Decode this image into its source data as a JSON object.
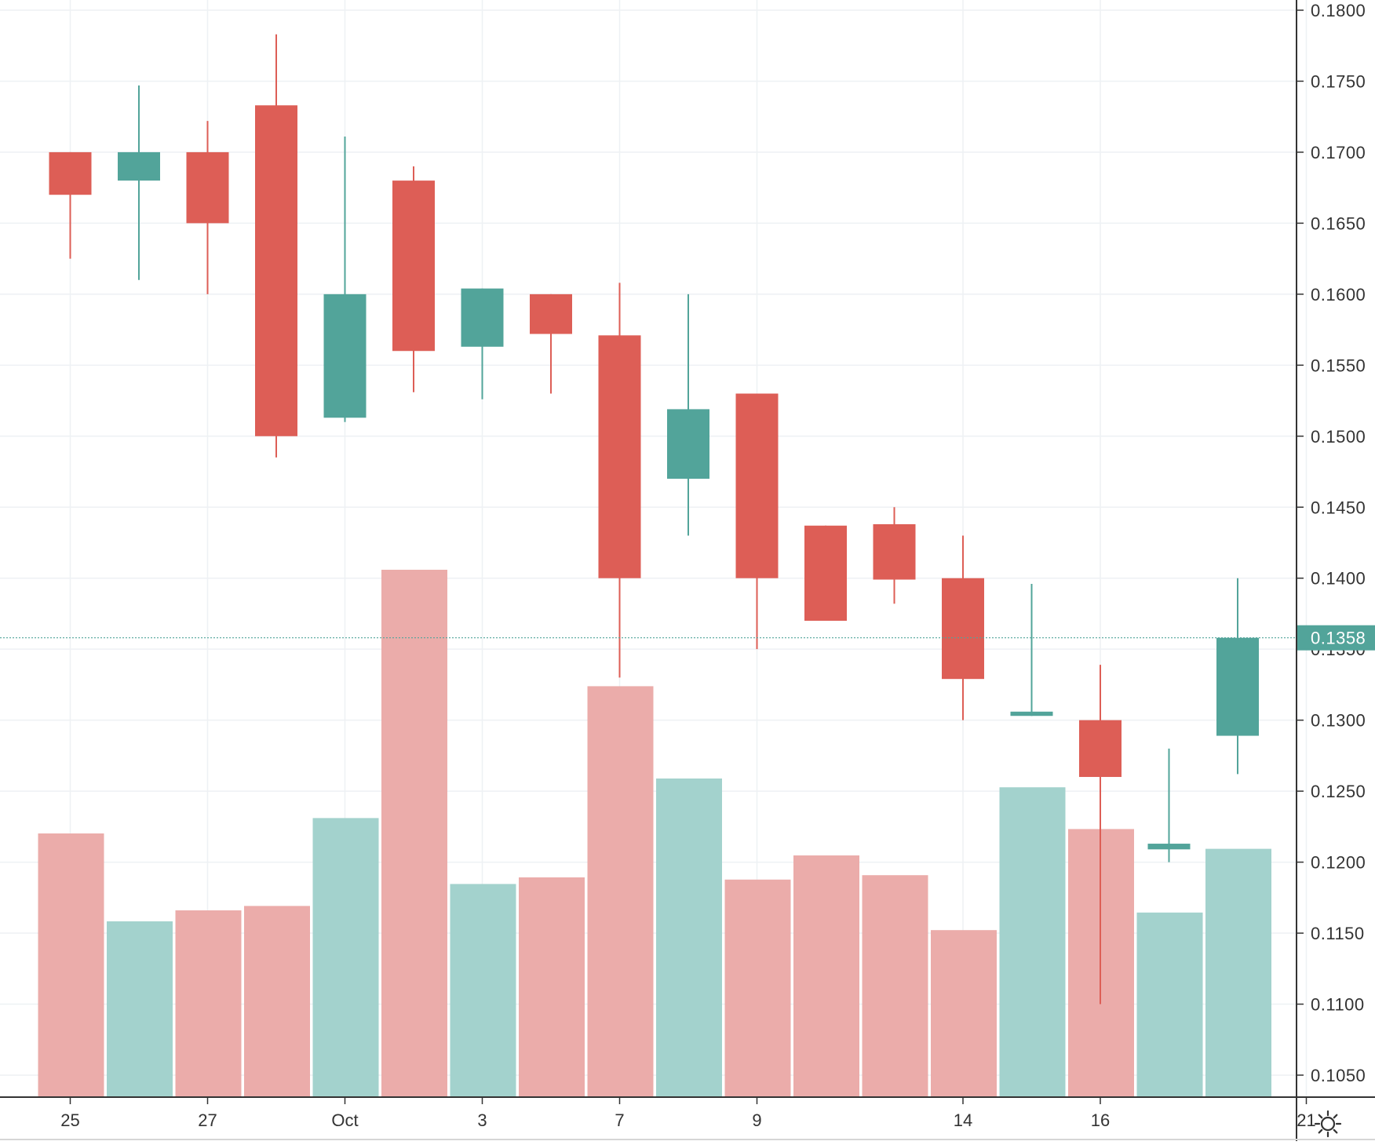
{
  "chart_data": {
    "type": "candlestick",
    "price_axis": {
      "ylim": [
        0.1035,
        0.1815
      ],
      "ticks": [
        "0.1050",
        "0.1100",
        "0.1150",
        "0.1200",
        "0.1250",
        "0.1300",
        "0.1350",
        "0.1400",
        "0.1450",
        "0.1500",
        "0.1550",
        "0.1600",
        "0.1650",
        "0.1700",
        "0.1750",
        "0.1800"
      ],
      "last_price": "0.1358",
      "last_price_value": 0.1358
    },
    "time_axis": {
      "labels": [
        {
          "text": "25",
          "slot": -1
        },
        {
          "text": "27",
          "slot": 1
        },
        {
          "text": "Oct",
          "slot": 3
        },
        {
          "text": "3",
          "slot": 5
        },
        {
          "text": "7",
          "slot": 7
        },
        {
          "text": "9",
          "slot": 9
        },
        {
          "text": "14",
          "slot": 12
        },
        {
          "text": "16",
          "slot": 14
        },
        {
          "text": "21",
          "slot": 17
        }
      ]
    },
    "colors": {
      "up": "#52a49a",
      "down": "#dd5e56",
      "up_volume": "#a3d2cd",
      "down_volume": "#ebacaa",
      "grid": "#eef1f4",
      "axis_text": "#333333",
      "last_price_badge": "#52a49a"
    },
    "candles": [
      {
        "slot": -1,
        "open": 0.17,
        "high": 0.17,
        "low": 0.1625,
        "close": 0.167,
        "volume": 1.2
      },
      {
        "slot": 0,
        "open": 0.168,
        "high": 0.1747,
        "low": 0.161,
        "close": 0.17,
        "volume": 0.8
      },
      {
        "slot": 1,
        "open": 0.17,
        "high": 0.1722,
        "low": 0.16,
        "close": 0.165,
        "volume": 0.85
      },
      {
        "slot": 2,
        "open": 0.1733,
        "high": 0.1783,
        "low": 0.1485,
        "close": 0.15,
        "volume": 0.87
      },
      {
        "slot": 3,
        "open": 0.1513,
        "high": 0.1711,
        "low": 0.151,
        "close": 0.16,
        "volume": 1.27
      },
      {
        "slot": 4,
        "open": 0.168,
        "high": 0.169,
        "low": 0.1531,
        "close": 0.156,
        "volume": 2.4
      },
      {
        "slot": 5,
        "open": 0.1563,
        "high": 0.1604,
        "low": 0.1526,
        "close": 0.1604,
        "volume": 0.97
      },
      {
        "slot": 6,
        "open": 0.16,
        "high": 0.16,
        "low": 0.153,
        "close": 0.1572,
        "volume": 1.0
      },
      {
        "slot": 7,
        "open": 0.1571,
        "high": 0.1608,
        "low": 0.133,
        "close": 0.14,
        "volume": 1.87
      },
      {
        "slot": 8,
        "open": 0.147,
        "high": 0.16,
        "low": 0.143,
        "close": 0.1519,
        "volume": 1.45
      },
      {
        "slot": 9,
        "open": 0.153,
        "high": 0.153,
        "low": 0.135,
        "close": 0.14,
        "volume": 0.99
      },
      {
        "slot": 10,
        "open": 0.1437,
        "high": 0.1437,
        "low": 0.137,
        "close": 0.137,
        "volume": 1.1
      },
      {
        "slot": 11,
        "open": 0.1438,
        "high": 0.145,
        "low": 0.1382,
        "close": 0.1399,
        "volume": 1.01
      },
      {
        "slot": 12,
        "open": 0.14,
        "high": 0.143,
        "low": 0.13,
        "close": 0.1329,
        "volume": 0.76
      },
      {
        "slot": 13,
        "open": 0.1303,
        "high": 0.1396,
        "low": 0.1303,
        "close": 0.1306,
        "volume": 1.41
      },
      {
        "slot": 14,
        "open": 0.13,
        "high": 0.1339,
        "low": 0.11,
        "close": 0.126,
        "volume": 1.22
      },
      {
        "slot": 15,
        "open": 0.1209,
        "high": 0.128,
        "low": 0.12,
        "close": 0.1213,
        "volume": 0.84
      },
      {
        "slot": 16,
        "open": 0.1289,
        "high": 0.14,
        "low": 0.1262,
        "close": 0.1358,
        "volume": 1.13
      }
    ]
  }
}
